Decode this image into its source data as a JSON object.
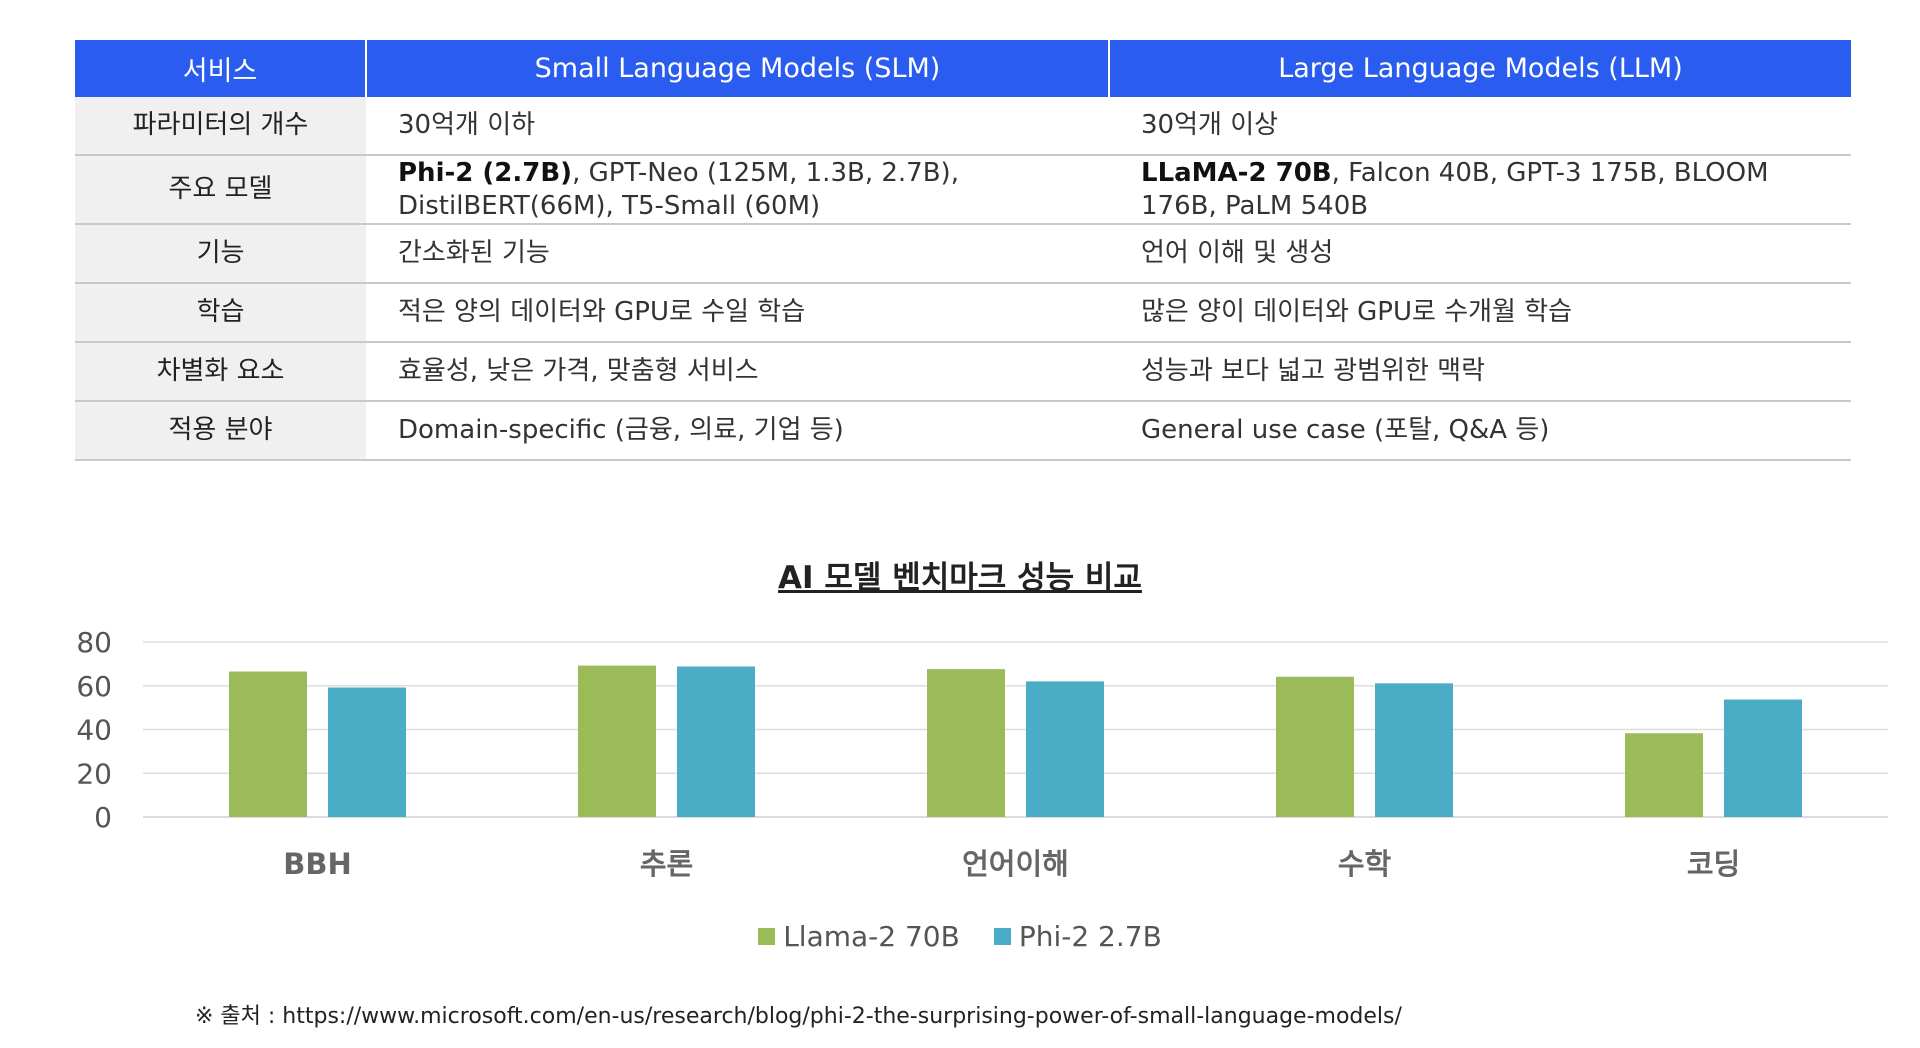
{
  "table": {
    "headers": [
      "서비스",
      "Small Language Models (SLM)",
      "Large Language Models (LLM)"
    ],
    "rows": [
      {
        "label": "파라미터의 개수",
        "slm": "30억개 이하",
        "llm": "30억개 이상"
      },
      {
        "label": "주요 모델",
        "slm_bold": "Phi-2 (2.7B)",
        "slm_line1_rest": ", GPT-Neo (125M, 1.3B, 2.7B),",
        "slm_line2": "DistilBERT(66M), T5-Small (60M)",
        "llm_bold": "LLaMA-2 70B",
        "llm_line1_rest": ", Falcon 40B, GPT-3 175B, BLOOM",
        "llm_line2": "176B, PaLM 540B"
      },
      {
        "label": "기능",
        "slm": "간소화된 기능",
        "llm": "언어 이해 및 생성"
      },
      {
        "label": "학습",
        "slm": "적은 양의 데이터와 GPU로 수일 학습",
        "llm": "많은 양이 데이터와 GPU로 수개월 학습"
      },
      {
        "label": "차별화 요소",
        "slm": "효율성, 낮은 가격, 맞춤형 서비스",
        "llm": "성능과 보다 넓고 광범위한 맥락"
      },
      {
        "label": "적용 분야",
        "slm": "Domain-specific (금융, 의료, 기업 등)",
        "llm": "General use case (포탈, Q&A 등)"
      }
    ]
  },
  "chart_data": {
    "type": "bar",
    "title": "AI 모델 벤치마크 성능 비교",
    "categories": [
      "BBH",
      "추론",
      "언어이해",
      "수학",
      "코딩"
    ],
    "series": [
      {
        "name": "Llama-2 70B",
        "values": [
          66.5,
          69.2,
          67.6,
          64.1,
          38.3
        ],
        "color": "#9bbb59"
      },
      {
        "name": "Phi-2 2.7B",
        "values": [
          59.2,
          68.8,
          62.0,
          61.1,
          53.7
        ],
        "color": "#4bacc6"
      }
    ],
    "ylim": [
      0,
      80
    ],
    "yticks": [
      0,
      20,
      40,
      60,
      80
    ],
    "grid": true,
    "legend": "bottom",
    "xlabel": "",
    "ylabel": ""
  },
  "source": "※ 출처 : https://www.microsoft.com/en-us/research/blog/phi-2-the-surprising-power-of-small-language-models/"
}
